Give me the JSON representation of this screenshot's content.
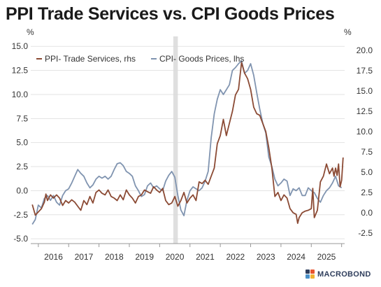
{
  "chart_data": {
    "type": "line",
    "title": "PPI Trade Services vs. CPI Goods Prices",
    "left_unit": "%",
    "right_unit": "%",
    "left_axis": {
      "range": [
        -5.5,
        15.6
      ],
      "ticks": [
        "15.0",
        "12.5",
        "10.0",
        "7.5",
        "5.0",
        "2.5",
        "0.0",
        "-2.5",
        "-5.0"
      ],
      "tick_values": [
        15,
        12.5,
        10,
        7.5,
        5,
        2.5,
        0,
        -2.5,
        -5
      ]
    },
    "right_axis": {
      "range": [
        -3.8,
        21.2
      ],
      "ticks": [
        "20.0",
        "17.5",
        "15.0",
        "12.5",
        "10.0",
        "7.5",
        "5.0",
        "2.5",
        "0.0",
        "-2.5"
      ],
      "tick_values": [
        20,
        17.5,
        15,
        12.5,
        10,
        7.5,
        5,
        2.5,
        0,
        -2.5
      ]
    },
    "x_axis": {
      "range": [
        2015.25,
        2025.6
      ],
      "labels": [
        "2016",
        "2017",
        "2018",
        "2019",
        "2020",
        "2021",
        "2022",
        "2023",
        "2024",
        "2025"
      ],
      "label_values": [
        2016,
        2017,
        2018,
        2019,
        2020,
        2021,
        2022,
        2023,
        2024,
        2025
      ]
    },
    "grid": "horizontal",
    "shaded_period": [
      2019.95,
      2020.1
    ],
    "legend_position": "top",
    "series": [
      {
        "name": "PPI- Trade Services, rhs",
        "axis": "right",
        "color": "#8b4a34",
        "points": [
          [
            2015.3,
            1.0
          ],
          [
            2015.4,
            -0.3
          ],
          [
            2015.6,
            0.5
          ],
          [
            2015.7,
            1.3
          ],
          [
            2015.75,
            2.3
          ],
          [
            2015.8,
            1.5
          ],
          [
            2015.9,
            2.2
          ],
          [
            2016.0,
            1.8
          ],
          [
            2016.1,
            2.2
          ],
          [
            2016.2,
            1.8
          ],
          [
            2016.3,
            0.9
          ],
          [
            2016.4,
            1.5
          ],
          [
            2016.5,
            1.2
          ],
          [
            2016.6,
            1.6
          ],
          [
            2016.7,
            1.3
          ],
          [
            2016.8,
            0.8
          ],
          [
            2016.9,
            0.3
          ],
          [
            2017.0,
            1.5
          ],
          [
            2017.1,
            1.0
          ],
          [
            2017.2,
            2.0
          ],
          [
            2017.3,
            1.2
          ],
          [
            2017.4,
            2.5
          ],
          [
            2017.5,
            2.8
          ],
          [
            2017.6,
            2.4
          ],
          [
            2017.7,
            2.2
          ],
          [
            2017.8,
            2.8
          ],
          [
            2017.9,
            2.0
          ],
          [
            2018.0,
            1.8
          ],
          [
            2018.1,
            1.5
          ],
          [
            2018.2,
            2.2
          ],
          [
            2018.3,
            1.6
          ],
          [
            2018.4,
            2.8
          ],
          [
            2018.5,
            2.2
          ],
          [
            2018.6,
            1.8
          ],
          [
            2018.7,
            1.2
          ],
          [
            2018.8,
            2.0
          ],
          [
            2018.9,
            2.2
          ],
          [
            2019.0,
            2.8
          ],
          [
            2019.1,
            2.6
          ],
          [
            2019.2,
            2.4
          ],
          [
            2019.3,
            3.2
          ],
          [
            2019.4,
            2.8
          ],
          [
            2019.5,
            2.5
          ],
          [
            2019.6,
            3.0
          ],
          [
            2019.7,
            1.5
          ],
          [
            2019.8,
            1.0
          ],
          [
            2019.9,
            1.2
          ],
          [
            2020.0,
            2.0
          ],
          [
            2020.1,
            0.8
          ],
          [
            2020.2,
            1.5
          ],
          [
            2020.3,
            2.5
          ],
          [
            2020.4,
            1.2
          ],
          [
            2020.5,
            1.8
          ],
          [
            2020.6,
            2.2
          ],
          [
            2020.7,
            1.5
          ],
          [
            2020.8,
            3.8
          ],
          [
            2020.9,
            3.6
          ],
          [
            2021.0,
            4.0
          ],
          [
            2021.1,
            3.5
          ],
          [
            2021.2,
            4.5
          ],
          [
            2021.3,
            5.5
          ],
          [
            2021.4,
            8.5
          ],
          [
            2021.5,
            9.5
          ],
          [
            2021.6,
            11.5
          ],
          [
            2021.7,
            9.5
          ],
          [
            2021.8,
            11.0
          ],
          [
            2021.9,
            12.5
          ],
          [
            2022.0,
            14.5
          ],
          [
            2022.1,
            15.2
          ],
          [
            2022.2,
            18.5
          ],
          [
            2022.3,
            17.2
          ],
          [
            2022.4,
            16.5
          ],
          [
            2022.5,
            15.2
          ],
          [
            2022.6,
            13.0
          ],
          [
            2022.7,
            12.2
          ],
          [
            2022.8,
            12.0
          ],
          [
            2022.9,
            11.0
          ],
          [
            2023.0,
            10.0
          ],
          [
            2023.1,
            8.0
          ],
          [
            2023.2,
            5.5
          ],
          [
            2023.3,
            2.0
          ],
          [
            2023.4,
            2.5
          ],
          [
            2023.5,
            1.5
          ],
          [
            2023.6,
            2.2
          ],
          [
            2023.7,
            1.8
          ],
          [
            2023.8,
            0.5
          ],
          [
            2023.9,
            0.0
          ],
          [
            2024.0,
            -0.2
          ],
          [
            2024.05,
            -1.3
          ],
          [
            2024.1,
            -0.6
          ],
          [
            2024.2,
            0.0
          ],
          [
            2024.3,
            0.2
          ],
          [
            2024.4,
            0.3
          ],
          [
            2024.5,
            0.5
          ],
          [
            2024.55,
            3.0
          ],
          [
            2024.6,
            -0.6
          ],
          [
            2024.7,
            0.3
          ],
          [
            2024.8,
            3.8
          ],
          [
            2024.9,
            4.5
          ],
          [
            2025.0,
            6.0
          ],
          [
            2025.1,
            4.8
          ],
          [
            2025.2,
            5.5
          ],
          [
            2025.25,
            4.5
          ],
          [
            2025.3,
            5.5
          ],
          [
            2025.35,
            4.6
          ],
          [
            2025.4,
            6.0
          ],
          [
            2025.45,
            3.2
          ],
          [
            2025.5,
            4.0
          ],
          [
            2025.55,
            6.8
          ]
        ]
      },
      {
        "name": "CPI- Goods Prices, lhs",
        "axis": "left",
        "color": "#8094b0",
        "points": [
          [
            2015.3,
            -3.5
          ],
          [
            2015.4,
            -3.0
          ],
          [
            2015.5,
            -1.5
          ],
          [
            2015.6,
            -1.8
          ],
          [
            2015.7,
            -0.8
          ],
          [
            2015.8,
            -0.5
          ],
          [
            2015.9,
            -1.0
          ],
          [
            2016.0,
            -0.5
          ],
          [
            2016.1,
            -1.2
          ],
          [
            2016.2,
            -1.5
          ],
          [
            2016.3,
            -0.5
          ],
          [
            2016.4,
            0.0
          ],
          [
            2016.5,
            0.2
          ],
          [
            2016.6,
            0.8
          ],
          [
            2016.7,
            1.5
          ],
          [
            2016.8,
            2.2
          ],
          [
            2016.9,
            1.8
          ],
          [
            2017.0,
            1.5
          ],
          [
            2017.1,
            0.8
          ],
          [
            2017.2,
            0.3
          ],
          [
            2017.3,
            0.6
          ],
          [
            2017.4,
            1.2
          ],
          [
            2017.5,
            1.5
          ],
          [
            2017.6,
            1.3
          ],
          [
            2017.7,
            1.5
          ],
          [
            2017.8,
            1.2
          ],
          [
            2017.9,
            1.5
          ],
          [
            2018.0,
            2.2
          ],
          [
            2018.1,
            2.8
          ],
          [
            2018.2,
            2.9
          ],
          [
            2018.3,
            2.6
          ],
          [
            2018.4,
            2.0
          ],
          [
            2018.5,
            1.8
          ],
          [
            2018.6,
            1.5
          ],
          [
            2018.7,
            0.5
          ],
          [
            2018.8,
            0.0
          ],
          [
            2018.9,
            -0.6
          ],
          [
            2019.0,
            -0.4
          ],
          [
            2019.1,
            0.5
          ],
          [
            2019.2,
            0.8
          ],
          [
            2019.3,
            0.3
          ],
          [
            2019.4,
            0.5
          ],
          [
            2019.5,
            0.2
          ],
          [
            2019.6,
            0.0
          ],
          [
            2019.7,
            1.0
          ],
          [
            2019.8,
            1.6
          ],
          [
            2019.9,
            2.0
          ],
          [
            2020.0,
            1.4
          ],
          [
            2020.1,
            -0.5
          ],
          [
            2020.2,
            -2.0
          ],
          [
            2020.3,
            -2.6
          ],
          [
            2020.4,
            -1.0
          ],
          [
            2020.5,
            0.0
          ],
          [
            2020.6,
            0.4
          ],
          [
            2020.7,
            0.2
          ],
          [
            2020.8,
            0.0
          ],
          [
            2020.9,
            0.3
          ],
          [
            2021.0,
            1.0
          ],
          [
            2021.1,
            2.0
          ],
          [
            2021.2,
            5.5
          ],
          [
            2021.3,
            8.0
          ],
          [
            2021.4,
            9.5
          ],
          [
            2021.5,
            10.5
          ],
          [
            2021.6,
            10.0
          ],
          [
            2021.7,
            10.5
          ],
          [
            2021.8,
            11.0
          ],
          [
            2021.9,
            12.5
          ],
          [
            2022.0,
            12.8
          ],
          [
            2022.1,
            13.2
          ],
          [
            2022.2,
            13.5
          ],
          [
            2022.3,
            12.2
          ],
          [
            2022.4,
            12.5
          ],
          [
            2022.5,
            13.2
          ],
          [
            2022.6,
            12.0
          ],
          [
            2022.7,
            10.2
          ],
          [
            2022.8,
            8.5
          ],
          [
            2022.9,
            7.0
          ],
          [
            2023.0,
            6.0
          ],
          [
            2023.1,
            3.5
          ],
          [
            2023.2,
            2.5
          ],
          [
            2023.3,
            1.2
          ],
          [
            2023.4,
            0.5
          ],
          [
            2023.5,
            0.8
          ],
          [
            2023.6,
            1.2
          ],
          [
            2023.7,
            1.0
          ],
          [
            2023.8,
            -0.5
          ],
          [
            2023.9,
            0.2
          ],
          [
            2024.0,
            0.0
          ],
          [
            2024.1,
            0.3
          ],
          [
            2024.2,
            -0.5
          ],
          [
            2024.3,
            -0.5
          ],
          [
            2024.4,
            0.3
          ],
          [
            2024.5,
            0.0
          ],
          [
            2024.6,
            -0.2
          ],
          [
            2024.7,
            -0.8
          ],
          [
            2024.8,
            -1.2
          ],
          [
            2024.9,
            -0.5
          ],
          [
            2025.0,
            0.0
          ],
          [
            2025.1,
            0.3
          ],
          [
            2025.2,
            0.8
          ],
          [
            2025.3,
            1.5
          ],
          [
            2025.4,
            0.5
          ],
          [
            2025.5,
            0.3
          ]
        ]
      }
    ]
  },
  "logo": {
    "text": "MACROBOND",
    "colors": [
      "#2f3e5c",
      "#e8542f",
      "#4a90c8",
      "#f2b233"
    ]
  }
}
